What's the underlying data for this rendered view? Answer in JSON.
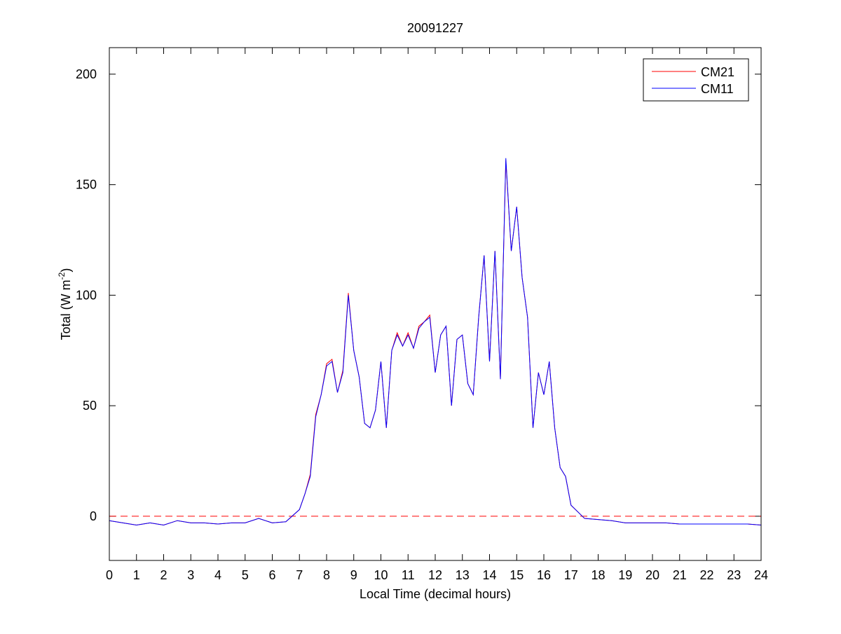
{
  "chart_data": {
    "type": "line",
    "title": "20091227",
    "xlabel": "Local Time (decimal hours)",
    "ylabel": {
      "text": "Total (W m",
      "superscript": "-2",
      "suffix": ")"
    },
    "x": [
      0,
      0.5,
      1,
      1.5,
      2,
      2.5,
      3,
      3.5,
      4,
      4.5,
      5,
      5.5,
      6,
      6.5,
      7,
      7.2,
      7.4,
      7.6,
      7.8,
      8,
      8.2,
      8.4,
      8.6,
      8.8,
      9,
      9.2,
      9.4,
      9.6,
      9.8,
      10,
      10.2,
      10.4,
      10.6,
      10.8,
      11,
      11.2,
      11.4,
      11.6,
      11.8,
      12,
      12.2,
      12.4,
      12.6,
      12.8,
      13,
      13.2,
      13.4,
      13.6,
      13.8,
      14,
      14.2,
      14.4,
      14.6,
      14.8,
      15,
      15.2,
      15.4,
      15.6,
      15.8,
      16,
      16.2,
      16.4,
      16.6,
      16.8,
      17,
      17.5,
      18,
      18.5,
      19,
      19.5,
      20,
      20.5,
      21,
      21.5,
      22,
      22.5,
      23,
      23.5,
      24
    ],
    "series": [
      {
        "name": "CM21",
        "color": "#ff0000",
        "values": [
          -2,
          -3,
          -4,
          -3,
          -4,
          -2,
          -3,
          -3,
          -3.5,
          -3,
          -3,
          -1,
          -3,
          -2.5,
          3,
          10,
          19,
          46,
          55,
          69,
          71,
          56,
          66,
          101,
          75,
          63,
          42,
          40,
          48,
          70,
          40,
          75,
          83,
          77,
          83,
          76,
          86,
          88,
          91,
          65,
          82,
          86,
          50,
          80,
          82,
          60,
          55,
          90,
          118,
          70,
          120,
          62,
          161,
          120,
          140,
          108,
          90,
          40,
          65,
          55,
          70,
          40,
          22,
          18,
          5,
          -1,
          -1.5,
          -2,
          -3,
          -3,
          -3,
          -3,
          -3.5,
          -3.5,
          -3.5,
          -3.5,
          -3.5,
          -3.5,
          -4
        ]
      },
      {
        "name": "CM11",
        "color": "#0000ff",
        "values": [
          -2,
          -3,
          -4,
          -3,
          -4,
          -2,
          -3,
          -3,
          -3.5,
          -3,
          -3,
          -1,
          -3,
          -2.5,
          3,
          10,
          18,
          45,
          55,
          68,
          70,
          56,
          65,
          100,
          75,
          63,
          42,
          40,
          48,
          70,
          40,
          75,
          82,
          77,
          82,
          76,
          85,
          88,
          90,
          65,
          82,
          86,
          50,
          80,
          82,
          60,
          55,
          90,
          118,
          70,
          120,
          62,
          162,
          120,
          140,
          108,
          90,
          40,
          65,
          55,
          70,
          40,
          22,
          18,
          5,
          -1,
          -1.5,
          -2,
          -3,
          -3,
          -3,
          -3,
          -3.5,
          -3.5,
          -3.5,
          -3.5,
          -3.5,
          -3.5,
          -4
        ]
      }
    ],
    "reference_line": {
      "value": 0,
      "color": "#ff0000"
    },
    "xlim": [
      0,
      24
    ],
    "xticks": [
      0,
      1,
      2,
      3,
      4,
      5,
      6,
      7,
      8,
      9,
      10,
      11,
      12,
      13,
      14,
      15,
      16,
      17,
      18,
      19,
      20,
      21,
      22,
      23,
      24
    ],
    "ylim": [
      -20,
      212
    ],
    "yticks": [
      0,
      50,
      100,
      150,
      200
    ],
    "legend": "upper right"
  }
}
